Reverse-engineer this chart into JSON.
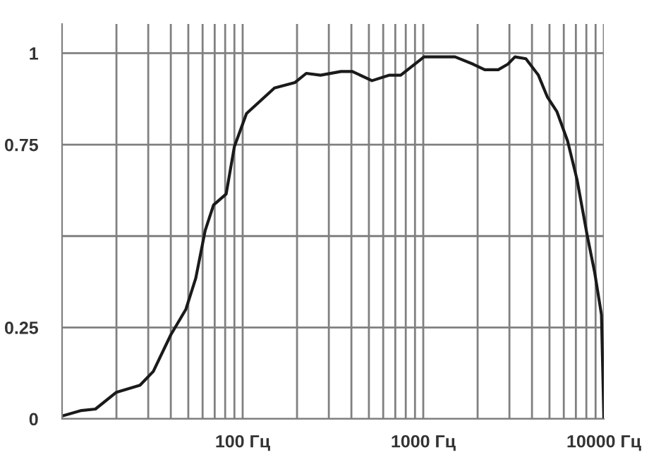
{
  "chart_data": {
    "type": "line",
    "color": "#1a1a1a",
    "log": "x",
    "grid": true,
    "marker": "none",
    "line_style": "solid",
    "xlim": [
      10,
      10000
    ],
    "xticks": [
      {
        "value": 100,
        "label": "100 Гц"
      },
      {
        "value": 1000,
        "label": "1000 Гц"
      },
      {
        "value": 10000,
        "label": "10000 Гц"
      }
    ],
    "ylim": [
      0,
      1.08
    ],
    "yticks": [
      0,
      0.25,
      {
        "value": 0.5,
        "label": null
      },
      0.75,
      1
    ],
    "x": [
      10,
      12.8,
      15.3,
      20,
      27,
      32,
      40,
      48.5,
      55,
      62,
      69,
      81,
      90,
      105,
      132,
      150,
      195,
      225,
      270,
      350,
      405,
      520,
      650,
      750,
      1010,
      1270,
      1500,
      1890,
      2190,
      2600,
      2940,
      3220,
      3700,
      4340,
      4870,
      5500,
      6300,
      7100,
      8100,
      8900,
      9700,
      10000
    ],
    "values": [
      0.008,
      0.023,
      0.027,
      0.073,
      0.092,
      0.13,
      0.23,
      0.3,
      0.385,
      0.515,
      0.585,
      0.615,
      0.745,
      0.835,
      0.88,
      0.905,
      0.92,
      0.945,
      0.94,
      0.95,
      0.95,
      0.925,
      0.94,
      0.94,
      0.99,
      0.99,
      0.99,
      0.97,
      0.955,
      0.955,
      0.97,
      0.99,
      0.985,
      0.94,
      0.88,
      0.84,
      0.76,
      0.655,
      0.5,
      0.4,
      0.285,
      0.0
    ]
  }
}
